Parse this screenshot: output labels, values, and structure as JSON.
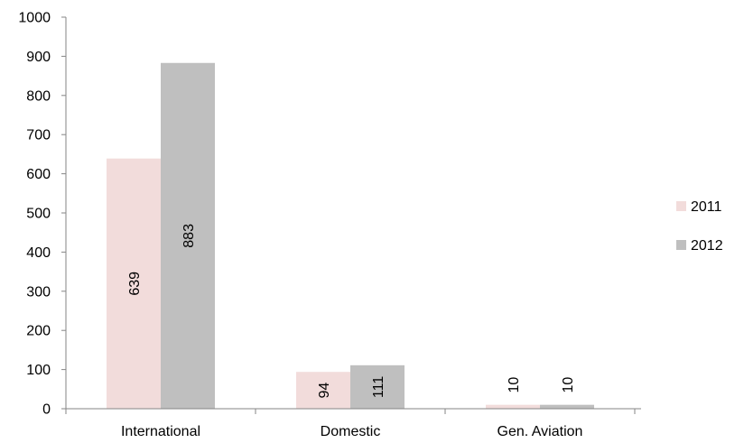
{
  "chart_data": {
    "type": "bar",
    "categories": [
      "International",
      "Domestic",
      "Gen. Aviation"
    ],
    "series": [
      {
        "name": "2011",
        "values": [
          639,
          94,
          10
        ],
        "color": "#f2dcdb"
      },
      {
        "name": "2012",
        "values": [
          883,
          111,
          10
        ],
        "color": "#bfbfbf"
      }
    ],
    "y_ticks": [
      "0",
      "100",
      "200",
      "300",
      "400",
      "500",
      "600",
      "700",
      "800",
      "900",
      "1000"
    ],
    "ylim": [
      0,
      1000
    ],
    "grid": false,
    "legend_position": "right",
    "data_labels": "rotated-vertical"
  }
}
